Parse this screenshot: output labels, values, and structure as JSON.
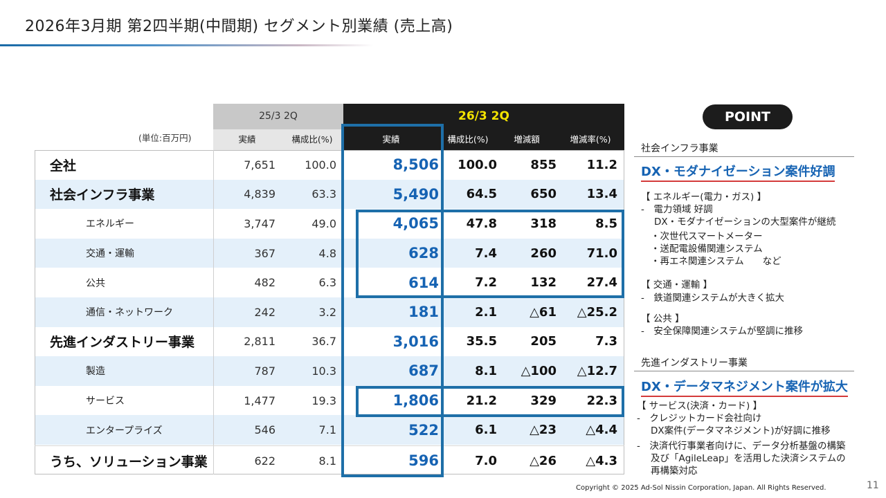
{
  "title": "2026年3月期 第2四半期(中間期) セグメント別業績 (売上高)",
  "table": {
    "unit": "(単位:百万円)",
    "prev_header": "25/3 2Q",
    "curr_header": "26/3 2Q",
    "prev_cols": [
      "実績",
      "構成比(%)"
    ],
    "curr_cols": [
      "実績",
      "構成比(%)",
      "増減額",
      "増減率(%)"
    ],
    "rows": [
      {
        "name": "全社",
        "prev": "7,651",
        "prev_ratio": "100.0",
        "curr": "8,506",
        "curr_ratio": "100.0",
        "diff": "855",
        "rate": "11.2"
      },
      {
        "name": "社会インフラ事業",
        "prev": "4,839",
        "prev_ratio": "63.3",
        "curr": "5,490",
        "curr_ratio": "64.5",
        "diff": "650",
        "rate": "13.4"
      },
      {
        "name": "エネルギー",
        "prev": "3,747",
        "prev_ratio": "49.0",
        "curr": "4,065",
        "curr_ratio": "47.8",
        "diff": "318",
        "rate": "8.5"
      },
      {
        "name": "交通・運輸",
        "prev": "367",
        "prev_ratio": "4.8",
        "curr": "628",
        "curr_ratio": "7.4",
        "diff": "260",
        "rate": "71.0"
      },
      {
        "name": "公共",
        "prev": "482",
        "prev_ratio": "6.3",
        "curr": "614",
        "curr_ratio": "7.2",
        "diff": "132",
        "rate": "27.4"
      },
      {
        "name": "通信・ネットワーク",
        "prev": "242",
        "prev_ratio": "3.2",
        "curr": "181",
        "curr_ratio": "2.1",
        "diff": "△61",
        "rate": "△25.2"
      },
      {
        "name": "先進インダストリー事業",
        "prev": "2,811",
        "prev_ratio": "36.7",
        "curr": "3,016",
        "curr_ratio": "35.5",
        "diff": "205",
        "rate": "7.3"
      },
      {
        "name": "製造",
        "prev": "787",
        "prev_ratio": "10.3",
        "curr": "687",
        "curr_ratio": "8.1",
        "diff": "△100",
        "rate": "△12.7"
      },
      {
        "name": "サービス",
        "prev": "1,477",
        "prev_ratio": "19.3",
        "curr": "1,806",
        "curr_ratio": "21.2",
        "diff": "329",
        "rate": "22.3"
      },
      {
        "name": "エンタープライズ",
        "prev": "546",
        "prev_ratio": "7.1",
        "curr": "522",
        "curr_ratio": "6.1",
        "diff": "△23",
        "rate": "△4.4"
      },
      {
        "name": "うち、ソリューション事業",
        "prev": "622",
        "prev_ratio": "8.1",
        "curr": "596",
        "curr_ratio": "7.0",
        "diff": "△26",
        "rate": "△4.3"
      }
    ]
  },
  "point": {
    "label": "POINT",
    "section1": {
      "label": "社会インフラ事業",
      "headline": "DX・モダナイゼーション案件好調",
      "lines": [
        "【 エネルギー(電力・ガス) 】",
        "-　電力領域 好調",
        "DX・モダナイゼーションの大型案件が継続",
        "・次世代スマートメーター",
        "・送配電設備関連システム",
        "・再エネ関連システム　　など",
        "【 交通・運輸 】",
        "-　鉄道関連システムが大きく拡大",
        "【 公共 】",
        "-　安全保障関連システムが堅調に推移"
      ]
    },
    "section2": {
      "label": "先進インダストリー事業",
      "headline": "DX・データマネジメント案件が拡大",
      "lines": [
        "【 サービス(決済・カード) 】",
        "-　クレジットカード会社向け",
        "DX案件(データマネジメント)が好調に推移",
        "-　決済代行事業者向けに、データ分析基盤の構築",
        "及び「AgileLeap」を活用した決済システムの",
        "再構築対応"
      ]
    }
  },
  "footer": {
    "copyright": "Copyright © 2025 Ad-Sol Nissin Corporation, Japan. All Rights Reserved.",
    "page": "11"
  }
}
